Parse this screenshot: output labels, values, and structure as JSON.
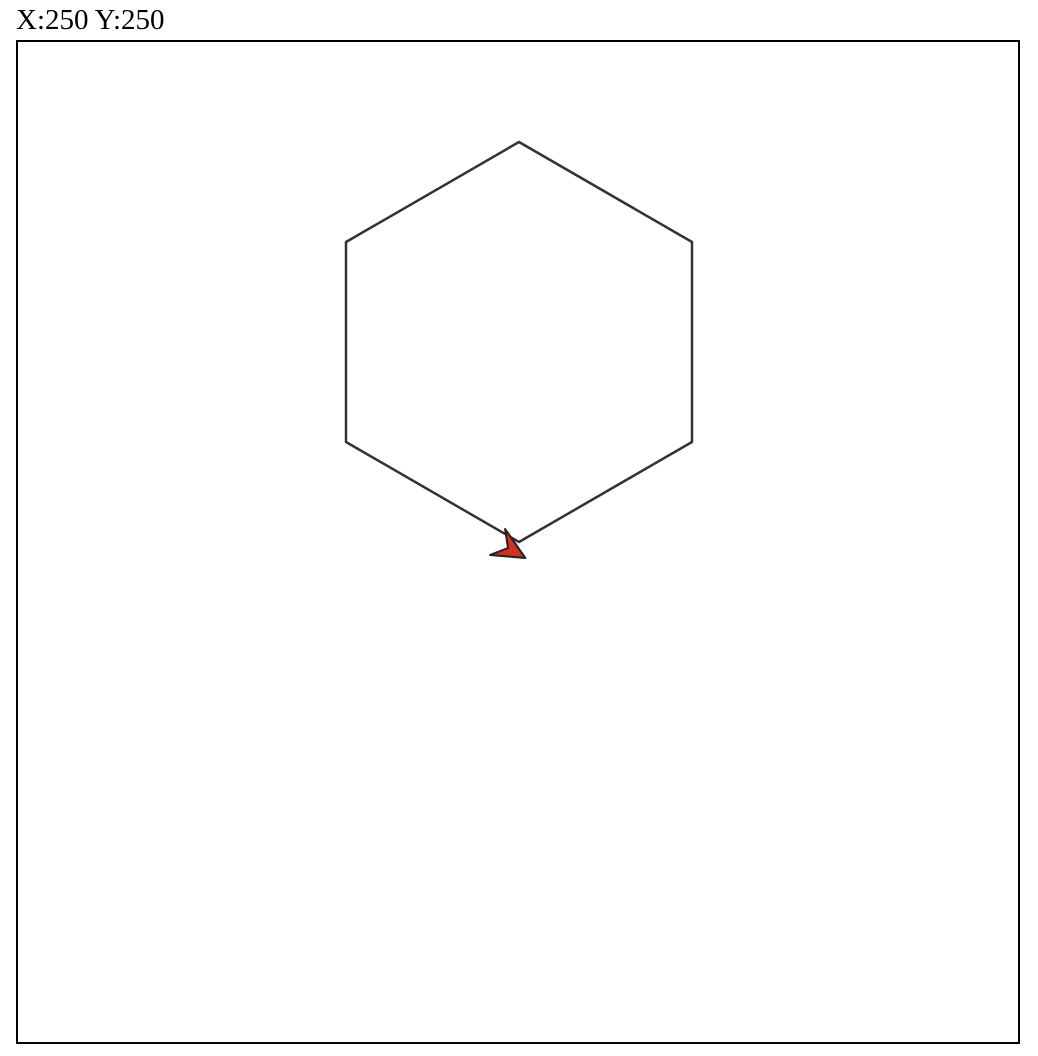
{
  "coordinates_readout": {
    "text": "X:250 Y:250",
    "x": 250,
    "y": 250
  },
  "drawing": {
    "shape": "hexagon",
    "turtle_heading_deg": 150,
    "colors": {
      "line": "#333333",
      "turtle_fill": "#d0321e",
      "turtle_stroke": "#222222",
      "canvas_background": "#ffffff",
      "canvas_border": "#000000"
    }
  }
}
